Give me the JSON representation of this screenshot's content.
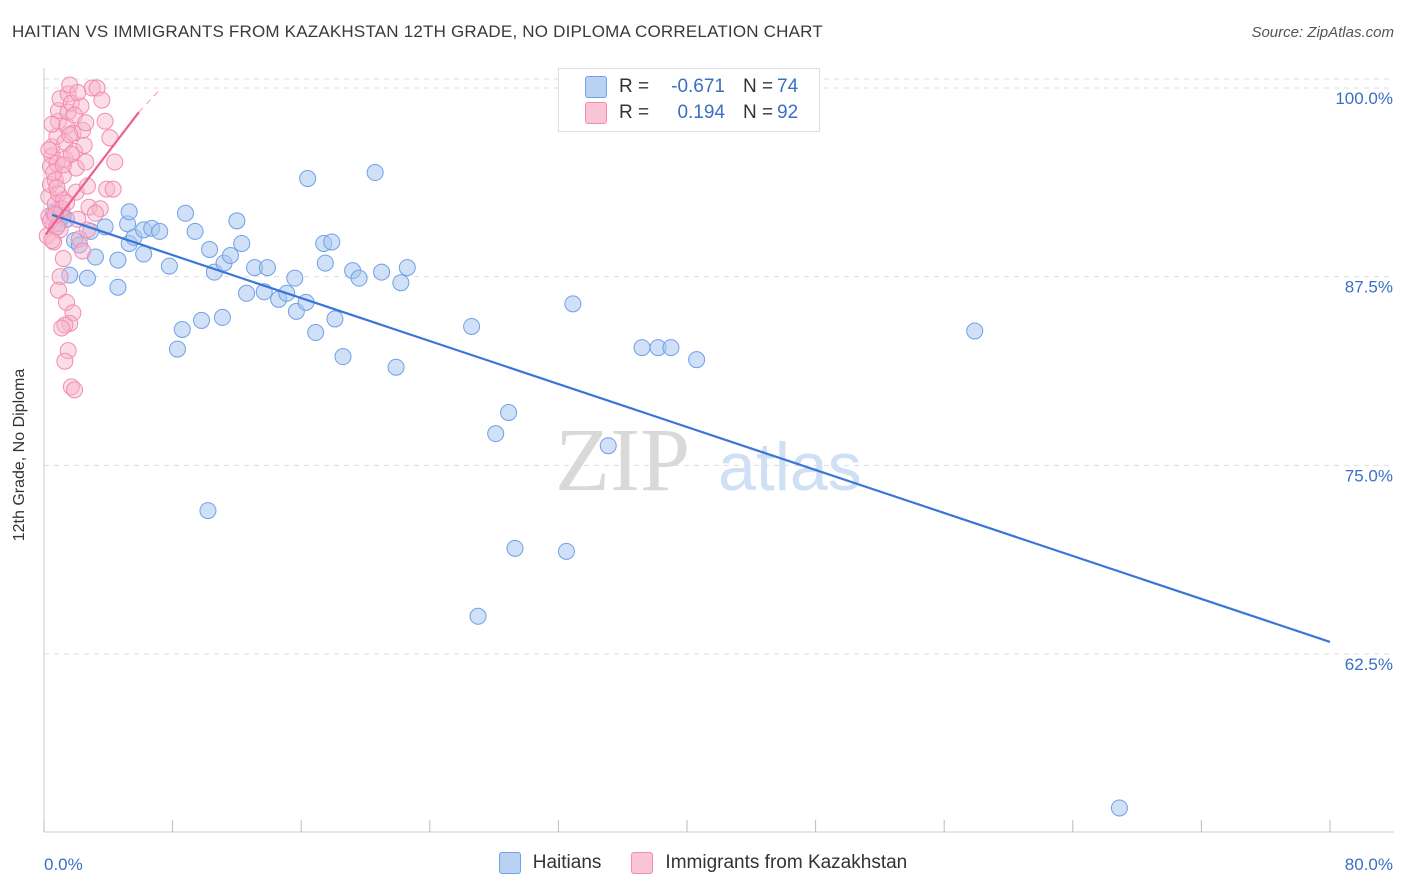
{
  "title": "HAITIAN VS IMMIGRANTS FROM KAZAKHSTAN 12TH GRADE, NO DIPLOMA CORRELATION CHART",
  "source": "Source: ZipAtlas.com",
  "watermark": {
    "zip": "ZIP",
    "atlas": "atlas"
  },
  "legend": {
    "rows": [
      {
        "r_label": "R =",
        "r_value": "-0.671",
        "n_label": "N =",
        "n_value": "74",
        "color": "#6fa0e8"
      },
      {
        "r_label": "R =",
        "r_value": "0.194",
        "n_label": "N =",
        "n_value": "92",
        "color": "#f28cb0"
      }
    ]
  },
  "bottom_legend": [
    {
      "label": "Haitians",
      "color": "#6fa0e8"
    },
    {
      "label": "Immigrants from Kazakhstan",
      "color": "#f28cb0"
    }
  ],
  "colors": {
    "blue": "#3a76d8",
    "blue_fill": "#a9c6f0",
    "pink": "#ec5f8f",
    "pink_fill": "#f6b3c9",
    "grid": "#dddddd",
    "tick_label": "#3a6fc4"
  },
  "chart_data": {
    "type": "scatter",
    "title": "HAITIAN VS IMMIGRANTS FROM KAZAKHSTAN 12TH GRADE, NO DIPLOMA CORRELATION CHART",
    "xlabel": "",
    "ylabel": "12th Grade, No Diploma",
    "xlim": [
      0,
      80
    ],
    "ylim": [
      52,
      102
    ],
    "x_tick_labels": [
      "0.0%",
      "80.0%"
    ],
    "y_ticks": [
      100,
      87.5,
      75,
      62.5
    ],
    "y_tick_labels": [
      "100.0%",
      "87.5%",
      "75.0%",
      "62.5%"
    ],
    "series": [
      {
        "name": "Haitians",
        "trend": {
          "x": [
            0.5,
            80
          ],
          "y": [
            91.6,
            63.3
          ]
        },
        "points": [
          [
            0.6,
            91.7
          ],
          [
            0.9,
            91.0
          ],
          [
            1.2,
            91.5
          ],
          [
            1.4,
            91.3
          ],
          [
            1.6,
            87.6
          ],
          [
            1.9,
            89.9
          ],
          [
            2.2,
            89.6
          ],
          [
            2.7,
            87.4
          ],
          [
            2.9,
            90.5
          ],
          [
            3.2,
            88.8
          ],
          [
            3.8,
            90.8
          ],
          [
            4.6,
            88.6
          ],
          [
            4.6,
            86.8
          ],
          [
            5.2,
            91.0
          ],
          [
            5.3,
            91.8
          ],
          [
            5.3,
            89.7
          ],
          [
            5.6,
            90.1
          ],
          [
            6.2,
            89.0
          ],
          [
            6.2,
            90.6
          ],
          [
            6.7,
            90.7
          ],
          [
            7.2,
            90.5
          ],
          [
            7.8,
            88.2
          ],
          [
            8.3,
            82.7
          ],
          [
            8.6,
            84.0
          ],
          [
            8.8,
            91.7
          ],
          [
            9.4,
            90.5
          ],
          [
            9.8,
            84.6
          ],
          [
            10.2,
            72.0
          ],
          [
            10.3,
            89.3
          ],
          [
            10.6,
            87.8
          ],
          [
            11.1,
            84.8
          ],
          [
            11.2,
            88.4
          ],
          [
            11.6,
            88.9
          ],
          [
            12.0,
            91.2
          ],
          [
            12.3,
            89.7
          ],
          [
            12.6,
            86.4
          ],
          [
            13.1,
            88.1
          ],
          [
            13.9,
            88.1
          ],
          [
            13.7,
            86.5
          ],
          [
            14.6,
            86.0
          ],
          [
            15.1,
            86.4
          ],
          [
            15.7,
            85.2
          ],
          [
            16.3,
            85.8
          ],
          [
            15.6,
            87.4
          ],
          [
            16.4,
            94.0
          ],
          [
            16.9,
            83.8
          ],
          [
            17.4,
            89.7
          ],
          [
            17.5,
            88.4
          ],
          [
            17.9,
            89.8
          ],
          [
            18.1,
            84.7
          ],
          [
            18.6,
            82.2
          ],
          [
            19.2,
            87.9
          ],
          [
            19.6,
            87.4
          ],
          [
            20.6,
            94.4
          ],
          [
            21.0,
            87.8
          ],
          [
            21.9,
            81.5
          ],
          [
            22.2,
            87.1
          ],
          [
            22.6,
            88.1
          ],
          [
            26.6,
            84.2
          ],
          [
            27.0,
            65.0
          ],
          [
            28.1,
            77.1
          ],
          [
            28.9,
            78.5
          ],
          [
            29.3,
            69.5
          ],
          [
            32.5,
            69.3
          ],
          [
            32.9,
            85.7
          ],
          [
            35.1,
            76.3
          ],
          [
            37.2,
            82.8
          ],
          [
            38.2,
            82.8
          ],
          [
            39.0,
            82.8
          ],
          [
            40.6,
            82.0
          ],
          [
            57.9,
            83.9
          ],
          [
            66.9,
            52.3
          ]
        ]
      },
      {
        "name": "Immigrants from Kazakhstan",
        "trend": {
          "x": [
            0.1,
            5.9
          ],
          "y": [
            90.3,
            98.4
          ]
        },
        "trend_ext": {
          "x": [
            5.9,
            7.3
          ],
          "y": [
            98.4,
            100.0
          ]
        },
        "points": [
          [
            0.2,
            90.2
          ],
          [
            0.3,
            91.5
          ],
          [
            0.3,
            92.8
          ],
          [
            0.4,
            93.6
          ],
          [
            0.4,
            94.8
          ],
          [
            0.5,
            95.5
          ],
          [
            0.5,
            96.1
          ],
          [
            0.6,
            89.8
          ],
          [
            0.6,
            91.0
          ],
          [
            0.7,
            92.3
          ],
          [
            0.7,
            93.9
          ],
          [
            0.8,
            95.0
          ],
          [
            0.8,
            96.8
          ],
          [
            0.9,
            97.8
          ],
          [
            0.9,
            98.5
          ],
          [
            1.0,
            99.3
          ],
          [
            1.0,
            90.6
          ],
          [
            1.1,
            91.8
          ],
          [
            1.2,
            92.6
          ],
          [
            1.2,
            94.2
          ],
          [
            1.3,
            95.3
          ],
          [
            1.3,
            96.4
          ],
          [
            1.4,
            97.5
          ],
          [
            1.5,
            98.4
          ],
          [
            1.5,
            99.6
          ],
          [
            1.6,
            100.2
          ],
          [
            1.7,
            99.0
          ],
          [
            1.8,
            97.0
          ],
          [
            1.9,
            95.8
          ],
          [
            2.0,
            94.7
          ],
          [
            2.0,
            93.1
          ],
          [
            2.1,
            91.3
          ],
          [
            2.2,
            90.0
          ],
          [
            2.3,
            98.8
          ],
          [
            2.4,
            97.2
          ],
          [
            2.5,
            96.2
          ],
          [
            2.6,
            95.1
          ],
          [
            2.7,
            93.5
          ],
          [
            2.8,
            92.1
          ],
          [
            1.2,
            88.7
          ],
          [
            1.0,
            87.5
          ],
          [
            0.9,
            86.6
          ],
          [
            1.4,
            85.8
          ],
          [
            1.8,
            85.1
          ],
          [
            1.6,
            84.4
          ],
          [
            1.3,
            84.3
          ],
          [
            1.1,
            84.1
          ],
          [
            1.5,
            82.6
          ],
          [
            1.3,
            81.9
          ],
          [
            1.7,
            80.2
          ],
          [
            1.9,
            80.0
          ],
          [
            3.0,
            100.0
          ],
          [
            3.3,
            100.0
          ],
          [
            3.6,
            99.2
          ],
          [
            3.8,
            97.8
          ],
          [
            4.1,
            96.7
          ],
          [
            4.4,
            95.1
          ],
          [
            3.9,
            93.3
          ],
          [
            4.3,
            93.3
          ],
          [
            3.5,
            92.0
          ],
          [
            2.4,
            89.2
          ],
          [
            2.7,
            90.6
          ],
          [
            3.2,
            91.7
          ],
          [
            0.5,
            97.6
          ],
          [
            0.3,
            95.9
          ],
          [
            0.6,
            94.4
          ],
          [
            0.9,
            93.0
          ],
          [
            1.1,
            92.0
          ],
          [
            0.4,
            91.2
          ],
          [
            0.8,
            90.8
          ],
          [
            2.1,
            99.7
          ],
          [
            1.9,
            98.2
          ],
          [
            2.6,
            97.7
          ],
          [
            1.6,
            96.9
          ],
          [
            1.7,
            95.6
          ],
          [
            1.2,
            94.9
          ],
          [
            0.8,
            93.4
          ],
          [
            1.4,
            92.4
          ],
          [
            0.7,
            91.6
          ],
          [
            0.5,
            89.9
          ]
        ]
      }
    ]
  }
}
